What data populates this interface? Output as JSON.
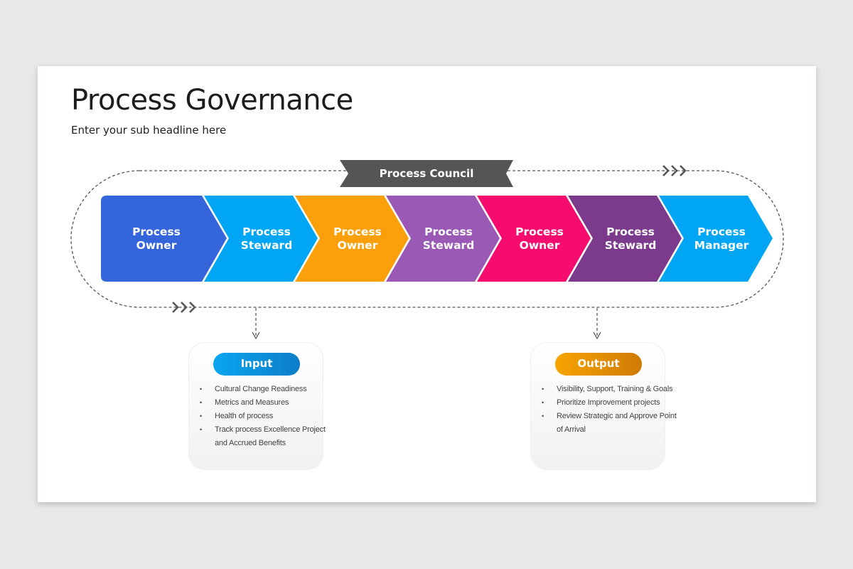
{
  "slide": {
    "title": "Process Governance",
    "subtitle": "Enter your sub headline here"
  },
  "council": {
    "label": "Process Council",
    "color": "#555555"
  },
  "chevrons": [
    {
      "label1": "Process",
      "label2": "Owner",
      "color": "#3565db"
    },
    {
      "label1": "Process",
      "label2": "Steward",
      "color": "#00a6f4"
    },
    {
      "label1": "Process",
      "label2": "Owner",
      "color": "#fba00a"
    },
    {
      "label1": "Process",
      "label2": "Steward",
      "color": "#9b59b6"
    },
    {
      "label1": "Process",
      "label2": "Owner",
      "color": "#f50c6e"
    },
    {
      "label1": "Process",
      "label2": "Steward",
      "color": "#7b3a8c"
    },
    {
      "label1": "Process",
      "label2": "Manager",
      "color": "#00a6f4"
    }
  ],
  "input": {
    "title": "Input",
    "items": [
      "Cultural Change Readiness",
      "Metrics and Measures",
      "Health of process",
      "Track process  Excellence Project and Accrued Benefits"
    ]
  },
  "output": {
    "title": "Output",
    "items": [
      "Visibility, Support, Training & Goals",
      "Prioritize Improvement projects",
      "Review Strategic and Approve Point of Arrival"
    ]
  }
}
